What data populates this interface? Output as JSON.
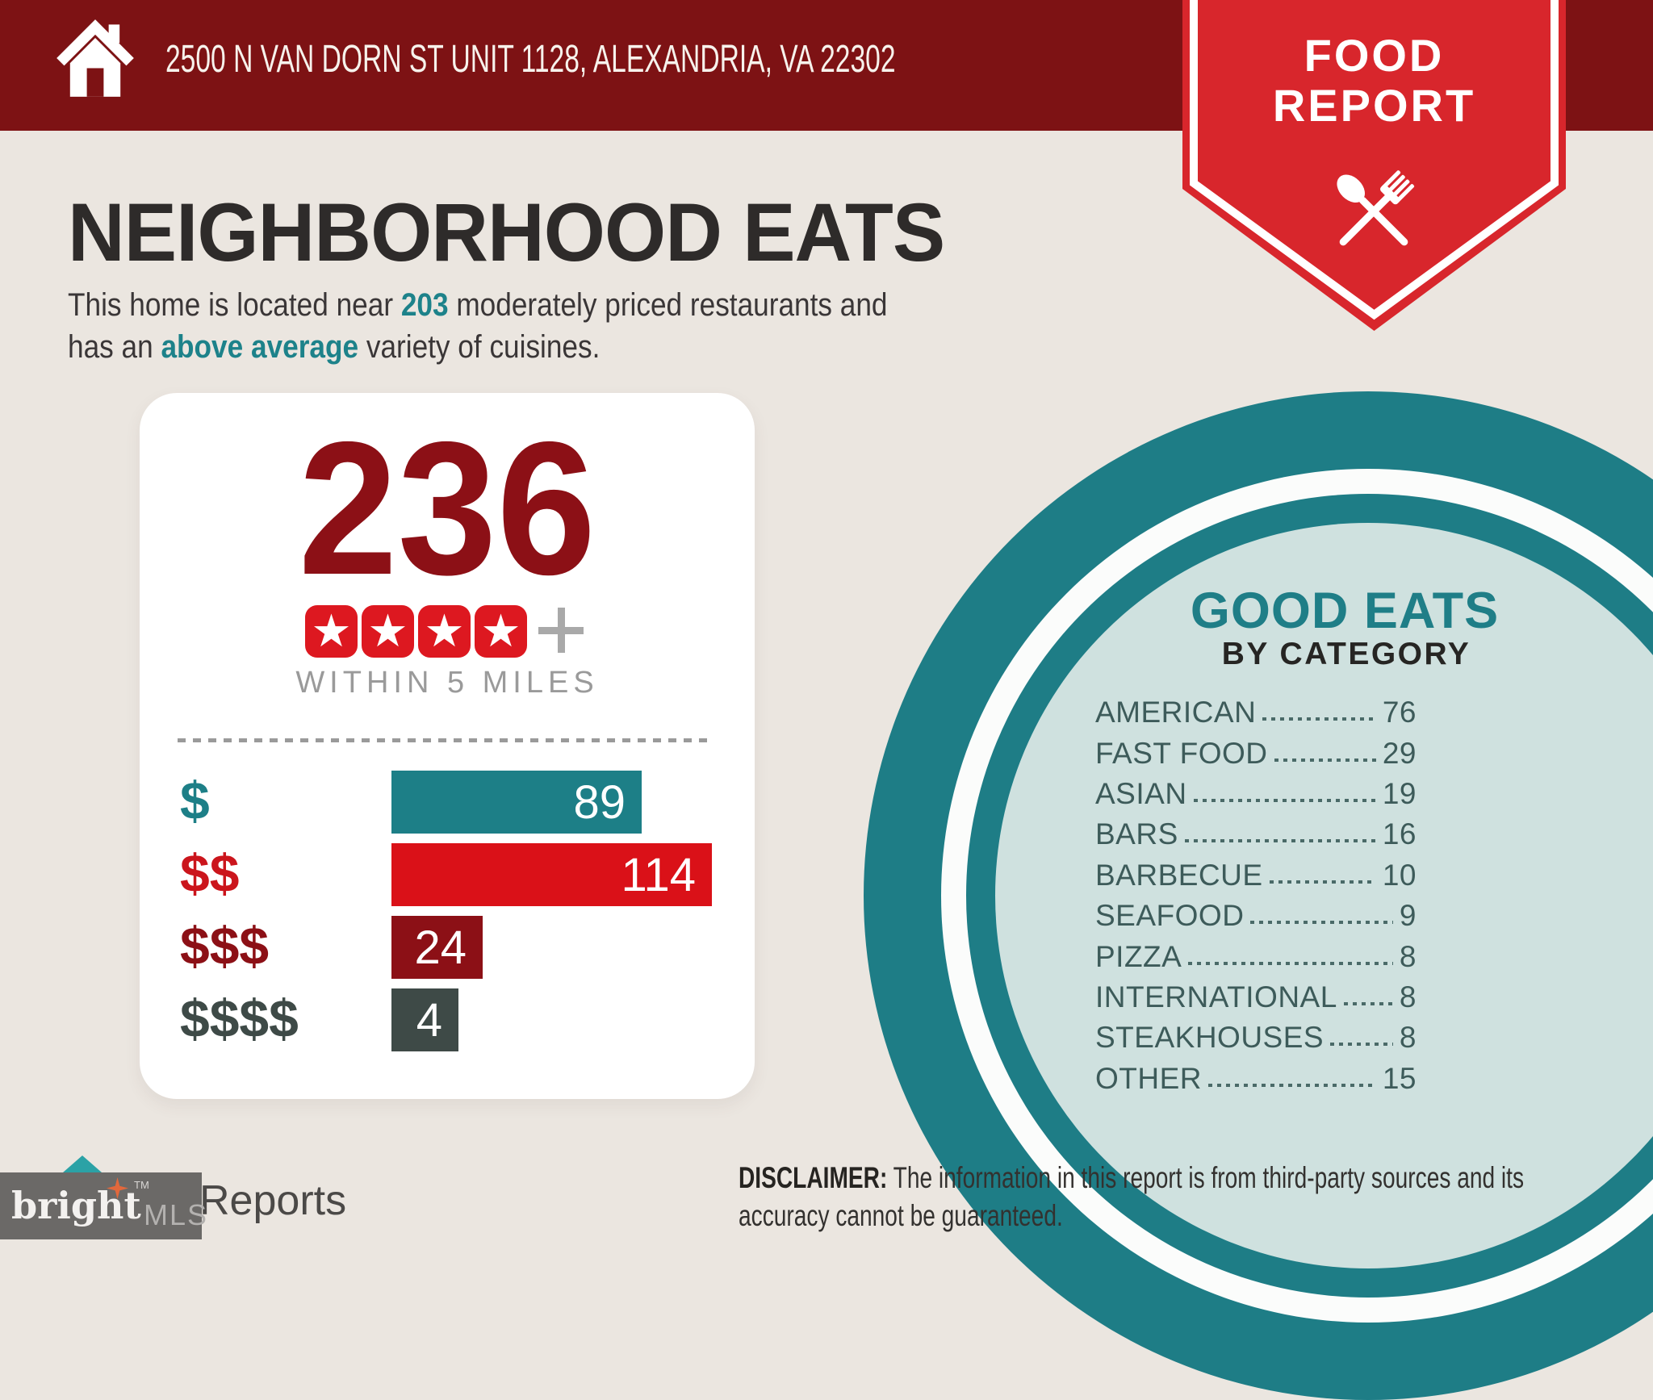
{
  "header": {
    "address": "2500 N VAN DORN ST UNIT 1128, ALEXANDRIA, VA 22302"
  },
  "badge": {
    "line1": "FOOD",
    "line2": "REPORT"
  },
  "intro": {
    "title": "NEIGHBORHOOD EATS",
    "text_before": "This home is located near ",
    "count": "203",
    "text_mid1": " moderately priced restaurants and",
    "text_mid2": "has an ",
    "highlight": "above average",
    "text_after": " variety of cuisines."
  },
  "summary_card": {
    "total": "236",
    "star_count": 4,
    "caption": "WITHIN 5 MILES"
  },
  "chart_data": [
    {
      "type": "bar",
      "orientation": "horizontal",
      "title": "236 restaurants within 5 miles by price tier",
      "categories": [
        "$",
        "$$",
        "$$$",
        "$$$$"
      ],
      "values": [
        89,
        114,
        24,
        4
      ],
      "bar_colors": [
        "#1d7f87",
        "#da1118",
        "#8c1016",
        "#3e4a47"
      ],
      "label_colors": [
        "#1d7f87",
        "#cb151c",
        "#8c1016",
        "#3e4a47"
      ],
      "value_labels_inside": true
    },
    {
      "type": "table",
      "title": "GOOD EATS",
      "subtitle": "BY CATEGORY",
      "categories": [
        "AMERICAN",
        "FAST FOOD",
        "ASIAN",
        "BARS",
        "BARBECUE",
        "SEAFOOD",
        "PIZZA",
        "INTERNATIONAL",
        "STEAKHOUSES",
        "OTHER"
      ],
      "values": [
        76,
        29,
        19,
        16,
        10,
        9,
        8,
        8,
        8,
        15
      ]
    }
  ],
  "disclaimer": {
    "label": "DISCLAIMER:",
    "line1": " The information in this report is from third-party sources and its",
    "line2": "accuracy cannot be guaranteed."
  },
  "brand": {
    "name": "bright",
    "tm": "TM",
    "suffix": "MLS",
    "partial_logo_text": "Reports"
  },
  "colors": {
    "header_maroon": "#7d1214",
    "badge_red": "#d8262c",
    "accent_teal": "#1e7d86",
    "dark_red": "#8c1016",
    "bright_red": "#da1118",
    "slate": "#3e4a47",
    "pale_teal": "#cfe1df",
    "background": "#ebe6e0"
  }
}
